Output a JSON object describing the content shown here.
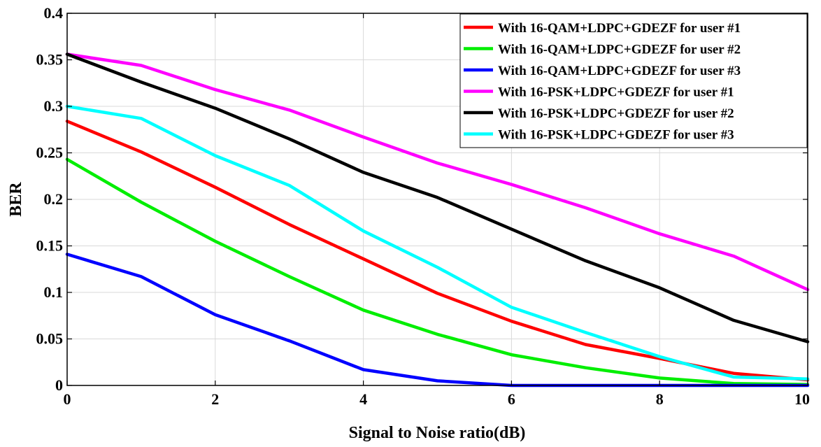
{
  "chart_data": {
    "type": "line",
    "title": "",
    "xlabel": "Signal to Noise ratio(dB)",
    "ylabel": "BER",
    "xlim": [
      0,
      10
    ],
    "ylim": [
      0,
      0.4
    ],
    "xticks": [
      0,
      2,
      4,
      6,
      8,
      10
    ],
    "xtick_labels": [
      "0",
      "2",
      "4",
      "6",
      "8",
      "10"
    ],
    "yticks": [
      0,
      0.05,
      0.1,
      0.15,
      0.2,
      0.25,
      0.3,
      0.35,
      0.4
    ],
    "ytick_labels": [
      "0",
      "0.05",
      "0.1",
      "0.15",
      "0.2",
      "0.25",
      "0.3",
      "0.35",
      "0.4"
    ],
    "grid": true,
    "legend_position": "top-right",
    "x": [
      0,
      1,
      2,
      3,
      4,
      5,
      6,
      7,
      8,
      9,
      10
    ],
    "series": [
      {
        "name": "With 16-QAM+LDPC+GDEZF for user #1",
        "color": "#ff0000",
        "values": [
          0.284,
          0.251,
          0.213,
          0.173,
          0.136,
          0.099,
          0.069,
          0.044,
          0.029,
          0.013,
          0.006
        ]
      },
      {
        "name": "With 16-QAM+LDPC+GDEZF for user #2",
        "color": "#00ee00",
        "values": [
          0.243,
          0.197,
          0.155,
          0.117,
          0.081,
          0.055,
          0.033,
          0.019,
          0.008,
          0.002,
          0.001
        ]
      },
      {
        "name": "With 16-QAM+LDPC+GDEZF for user #3",
        "color": "#0000ff",
        "values": [
          0.141,
          0.117,
          0.076,
          0.048,
          0.017,
          0.005,
          0.0,
          0.0,
          0.0,
          0.0,
          0.0
        ]
      },
      {
        "name": "With 16-PSK+LDPC+GDEZF for user #1",
        "color": "#ff00ff",
        "values": [
          0.356,
          0.344,
          0.318,
          0.296,
          0.267,
          0.239,
          0.216,
          0.191,
          0.163,
          0.139,
          0.103
        ]
      },
      {
        "name": "With 16-PSK+LDPC+GDEZF for user #2",
        "color": "#000000",
        "values": [
          0.356,
          0.326,
          0.298,
          0.265,
          0.229,
          0.202,
          0.168,
          0.134,
          0.105,
          0.07,
          0.047
        ]
      },
      {
        "name": "With 16-PSK+LDPC+GDEZF for user #3",
        "color": "#00ffff",
        "values": [
          0.3,
          0.287,
          0.247,
          0.215,
          0.166,
          0.127,
          0.084,
          0.057,
          0.031,
          0.009,
          0.007
        ]
      }
    ]
  }
}
